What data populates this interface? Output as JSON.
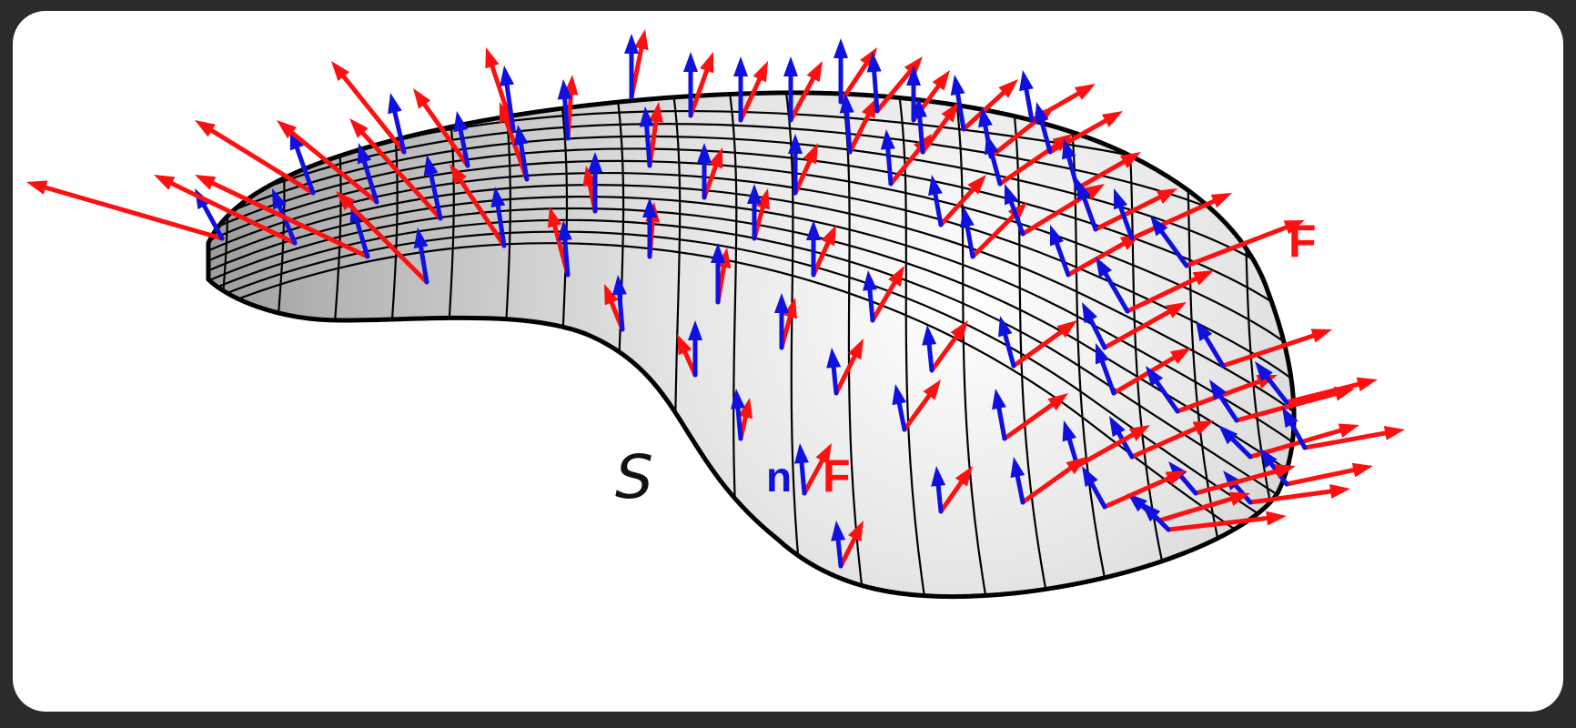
{
  "labels": {
    "surface": "S",
    "normal": "n",
    "field_center": "F",
    "field_edge": "F"
  },
  "colors": {
    "normal_vector": "#1010e0",
    "field_vector": "#ff1010",
    "outline": "#000000",
    "background": "#ffffff",
    "frame": "#2b2b2b"
  }
}
